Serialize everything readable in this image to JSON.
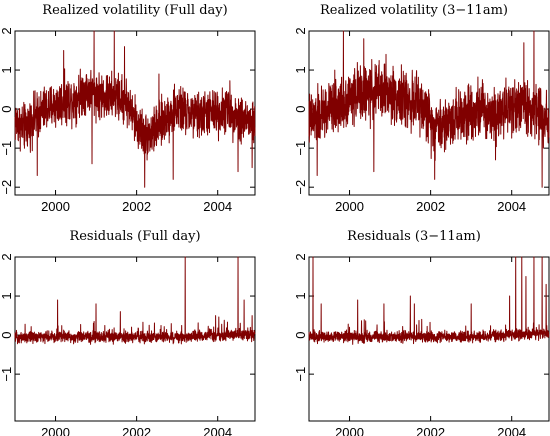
{
  "chart_data": [
    {
      "type": "line",
      "title": "Realized volatility (Full day)",
      "xlim": [
        1999.0,
        2004.92
      ],
      "ylim": [
        -2.2,
        2.0
      ],
      "xticks": [
        "2000",
        "2002",
        "2004"
      ],
      "xtick_values": [
        2000,
        2002,
        2004
      ],
      "yticks": [
        "−2",
        "−1",
        "0",
        "1",
        "2"
      ],
      "ytick_values": [
        -2,
        -1,
        0,
        1,
        2
      ],
      "color": "#800000",
      "series": [
        {
          "x": [
            1999.0,
            1999.25,
            1999.5,
            1999.75,
            2000.0,
            2000.25,
            2000.5,
            2000.75,
            2001.0,
            2001.25,
            2001.5,
            2001.75,
            2002.0,
            2002.25,
            2002.5,
            2002.75,
            2003.0,
            2003.25,
            2003.5,
            2003.75,
            2004.0,
            2004.25,
            2004.5,
            2004.75,
            2004.92
          ],
          "y": [
            -0.3,
            -0.5,
            -0.2,
            0.0,
            0.1,
            0.2,
            0.3,
            0.5,
            0.4,
            0.3,
            0.3,
            0.2,
            -0.4,
            -0.7,
            -0.5,
            -0.2,
            0.0,
            -0.1,
            -0.2,
            -0.1,
            -0.1,
            0.0,
            -0.2,
            -0.3,
            -0.4
          ],
          "noise": 0.5,
          "spikes": [
            [
              2000.2,
              1.5
            ],
            [
              2000.95,
              2.0
            ],
            [
              2001.45,
              2.0
            ],
            [
              2001.7,
              1.6
            ],
            [
              1999.55,
              -1.7
            ],
            [
              2000.9,
              -1.4
            ],
            [
              2002.2,
              -2.0
            ],
            [
              2002.9,
              -1.8
            ],
            [
              2004.5,
              -1.6
            ],
            [
              2004.85,
              -1.5
            ],
            [
              2002.55,
              0.9
            ]
          ]
        }
      ]
    },
    {
      "type": "line",
      "title": "Realized volatility (3−11am)",
      "xlim": [
        1999.0,
        2004.92
      ],
      "ylim": [
        -2.2,
        2.0
      ],
      "xticks": [
        "2000",
        "2002",
        "2004"
      ],
      "xtick_values": [
        2000,
        2002,
        2004
      ],
      "yticks": [
        "−2",
        "−1",
        "0",
        "1",
        "2"
      ],
      "ytick_values": [
        -2,
        -1,
        0,
        1,
        2
      ],
      "color": "#800000",
      "series": [
        {
          "x": [
            1999.0,
            1999.25,
            1999.5,
            1999.75,
            2000.0,
            2000.25,
            2000.5,
            2000.75,
            2001.0,
            2001.25,
            2001.5,
            2001.75,
            2002.0,
            2002.25,
            2002.5,
            2002.75,
            2003.0,
            2003.25,
            2003.5,
            2003.75,
            2004.0,
            2004.25,
            2004.5,
            2004.75,
            2004.92
          ],
          "y": [
            -0.3,
            -0.2,
            0.0,
            0.1,
            0.3,
            0.4,
            0.4,
            0.5,
            0.4,
            0.3,
            0.2,
            0.1,
            -0.3,
            -0.4,
            -0.3,
            -0.1,
            0.0,
            0.0,
            -0.1,
            0.0,
            0.1,
            0.1,
            0.0,
            -0.2,
            -0.2
          ],
          "noise": 0.6,
          "spikes": [
            [
              1999.85,
              2.0
            ],
            [
              2000.35,
              1.8
            ],
            [
              2000.9,
              1.4
            ],
            [
              2004.55,
              2.0
            ],
            [
              2004.3,
              1.7
            ],
            [
              1999.2,
              -1.7
            ],
            [
              2000.6,
              -1.6
            ],
            [
              2002.1,
              -1.8
            ],
            [
              2004.75,
              -2.0
            ],
            [
              2003.6,
              -1.3
            ]
          ]
        }
      ]
    },
    {
      "type": "line",
      "title": "Residuals (Full day)",
      "xlim": [
        1999.0,
        2004.92
      ],
      "ylim": [
        -2.2,
        2.0
      ],
      "xticks": [
        "2000",
        "2002",
        "2004"
      ],
      "xtick_values": [
        2000,
        2002,
        2004
      ],
      "yticks": [
        "−1",
        "0",
        "1",
        "2"
      ],
      "ytick_values": [
        -1,
        0,
        1,
        2
      ],
      "color": "#800000",
      "series": [
        {
          "x": [
            1999.0,
            2000.0,
            2001.0,
            2002.0,
            2003.0,
            2004.0,
            2004.92
          ],
          "y": [
            -0.05,
            -0.05,
            -0.05,
            -0.05,
            -0.05,
            0.0,
            0.0
          ],
          "noise": 0.12,
          "spikes": [
            [
              2000.05,
              0.9
            ],
            [
              2001.0,
              0.8
            ],
            [
              2001.6,
              0.6
            ],
            [
              2003.2,
              2.0
            ],
            [
              2004.5,
              2.0
            ],
            [
              2004.65,
              0.9
            ],
            [
              2003.95,
              0.5
            ],
            [
              2004.85,
              0.5
            ]
          ]
        }
      ]
    },
    {
      "type": "line",
      "title": "Residuals (3−11am)",
      "xlim": [
        1999.0,
        2004.92
      ],
      "ylim": [
        -2.2,
        2.0
      ],
      "xticks": [
        "2000",
        "2002",
        "2004"
      ],
      "xtick_values": [
        2000,
        2002,
        2004
      ],
      "yticks": [
        "−1",
        "0",
        "1",
        "2"
      ],
      "ytick_values": [
        -1,
        0,
        1,
        2
      ],
      "color": "#800000",
      "series": [
        {
          "x": [
            1999.0,
            2000.0,
            2001.0,
            2002.0,
            2003.0,
            2004.0,
            2004.92
          ],
          "y": [
            -0.05,
            -0.05,
            -0.05,
            -0.05,
            -0.05,
            0.0,
            0.05
          ],
          "noise": 0.12,
          "spikes": [
            [
              1999.1,
              2.0
            ],
            [
              1999.3,
              0.8
            ],
            [
              2000.2,
              0.9
            ],
            [
              2000.85,
              0.8
            ],
            [
              2001.5,
              1.0
            ],
            [
              2001.6,
              0.8
            ],
            [
              2003.0,
              0.8
            ],
            [
              2003.95,
              1.0
            ],
            [
              2004.1,
              2.0
            ],
            [
              2004.25,
              2.0
            ],
            [
              2004.35,
              1.5
            ],
            [
              2004.55,
              2.0
            ],
            [
              2004.75,
              2.0
            ],
            [
              2004.85,
              1.3
            ]
          ]
        }
      ]
    }
  ]
}
